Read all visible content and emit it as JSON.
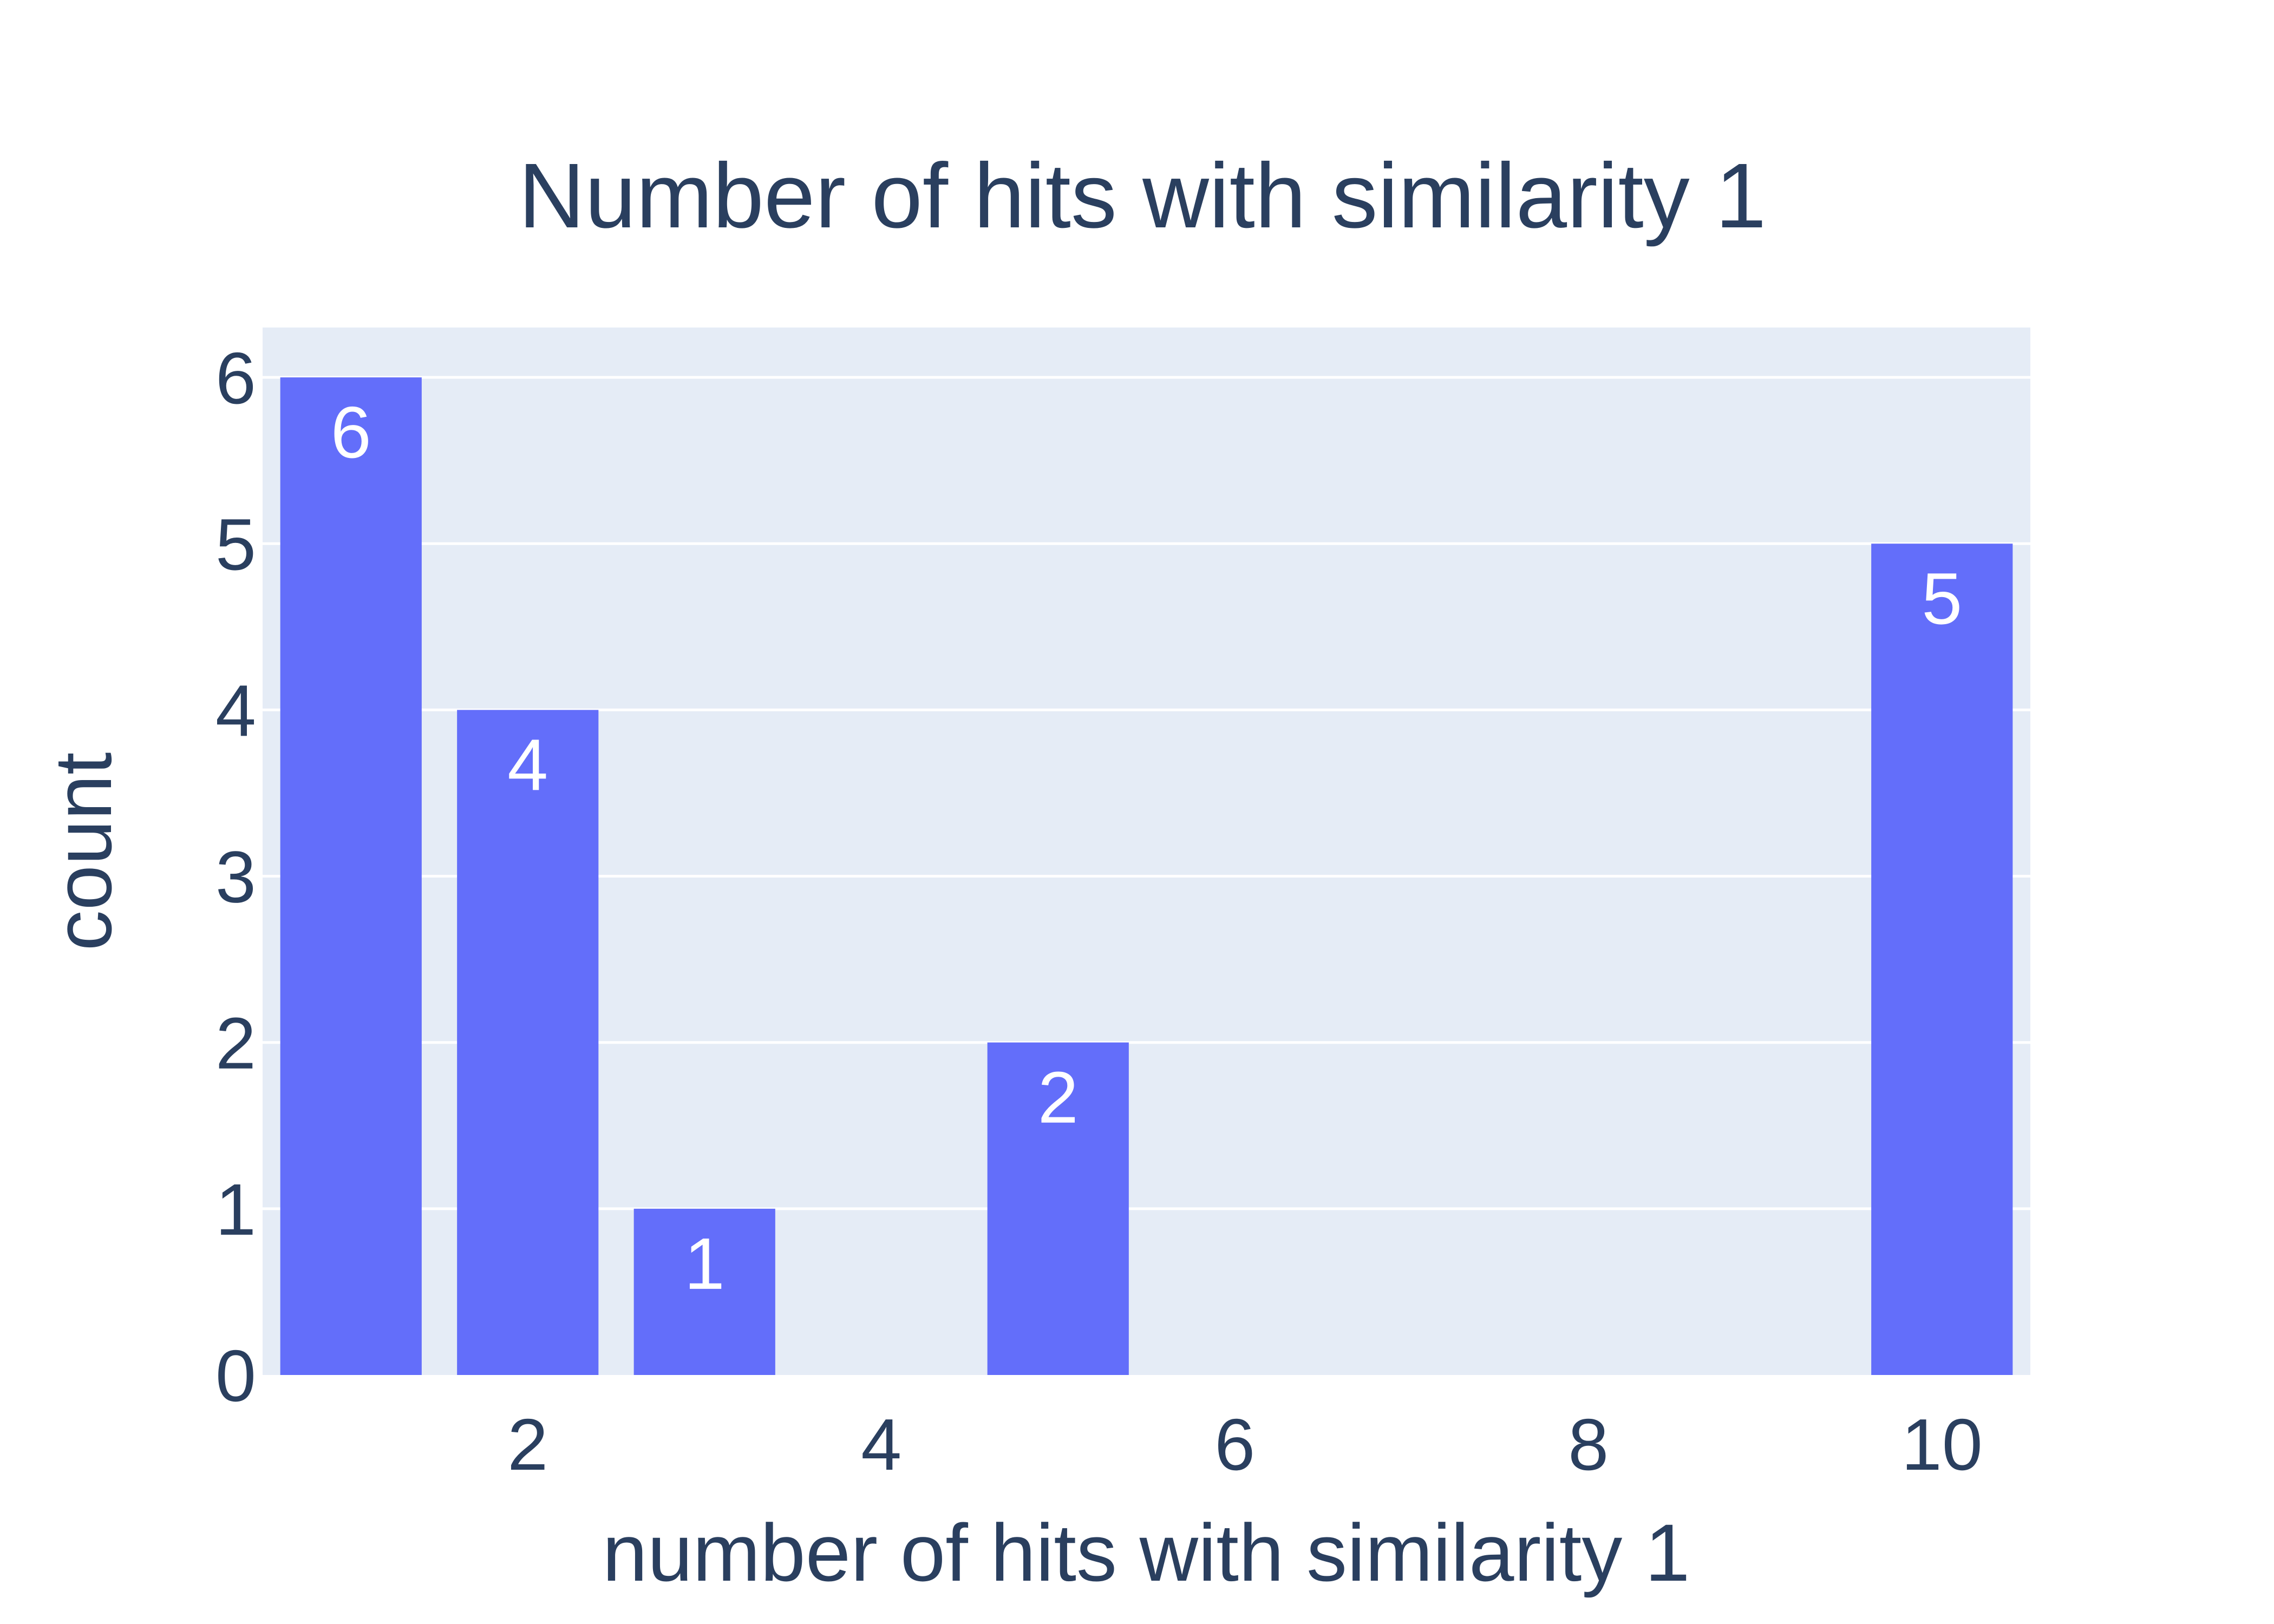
{
  "chart_data": {
    "type": "bar",
    "title": "Number of hits with similarity 1",
    "xlabel": "number of hits with similarity 1",
    "ylabel": "count",
    "x": [
      1,
      2,
      3,
      5,
      10
    ],
    "values": [
      6,
      4,
      1,
      2,
      5
    ],
    "data_labels": [
      "6",
      "4",
      "1",
      "2",
      "5"
    ],
    "xlim": [
      0.5,
      10.5
    ],
    "ylim": [
      0,
      6.3
    ],
    "xticks": [
      2,
      4,
      6,
      8,
      10
    ],
    "yticks": [
      0,
      1,
      2,
      3,
      4,
      5,
      6
    ],
    "grid": true,
    "colors": {
      "bar": "#636efa",
      "plot_bg": "#e5ecf6",
      "grid": "#ffffff",
      "text": "#2a3f5f",
      "bar_text": "#ffffff"
    }
  }
}
